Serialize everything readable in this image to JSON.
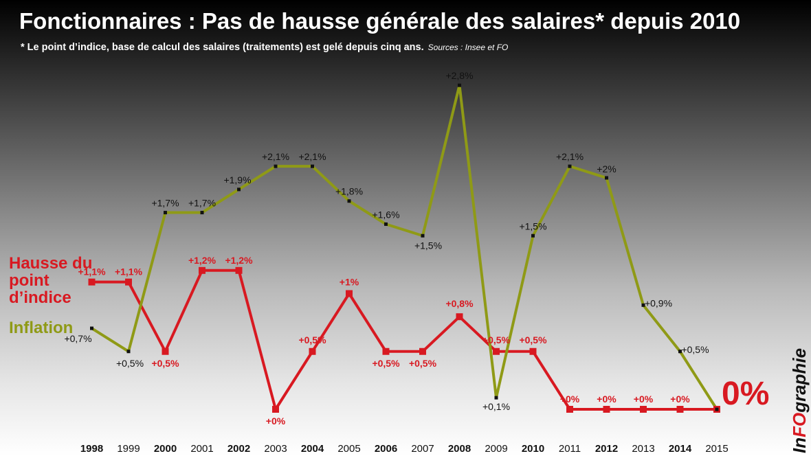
{
  "header": {
    "title": "Fonctionnaires : Pas de hausse générale des salaires* depuis 2010",
    "subtitle": "* Le point d’indice, base de calcul des salaires (traitements) est gelé depuis cinq ans.",
    "sources": "Sources : Insee et FO"
  },
  "legend": {
    "hausse": "Hausse du point d’indice",
    "inflation": "Inflation"
  },
  "highlight": "0%",
  "brand": {
    "part1": "In",
    "part2": "FO",
    "part3": "graphie"
  },
  "colors": {
    "hausse": "#d81921",
    "inflation": "#8f9a16",
    "background_top": "#000000",
    "background_bottom": "#ffffff"
  },
  "chart_data": {
    "type": "line",
    "title": "Fonctionnaires : Pas de hausse générale des salaires* depuis 2010",
    "x": [
      "1998",
      "1999",
      "2000",
      "2001",
      "2002",
      "2003",
      "2004",
      "2005",
      "2006",
      "2007",
      "2008",
      "2009",
      "2010",
      "2011",
      "2012",
      "2013",
      "2014",
      "2015"
    ],
    "bold_years": [
      "1998",
      "2000",
      "2002",
      "2004",
      "2006",
      "2008",
      "2010",
      "2012",
      "2014"
    ],
    "ylim": [
      0,
      2.8
    ],
    "grid": false,
    "legend_placement": "left",
    "series": [
      {
        "name": "Hausse du point d’indice",
        "values": [
          1.1,
          1.1,
          0.5,
          1.2,
          1.2,
          0,
          0.5,
          1.0,
          0.5,
          0.5,
          0.8,
          0.5,
          0.5,
          0,
          0,
          0,
          0,
          0
        ],
        "labels": [
          "+1,1%",
          "+1,1%",
          "+0,5%",
          "+1,2%",
          "+1,2%",
          "+0%",
          "+0,5%",
          "+1%",
          "+0,5%",
          "+0,5%",
          "+0,8%",
          "+0,5%",
          "+0,5%",
          "+0%",
          "+0%",
          "+0%",
          "+0%",
          ""
        ]
      },
      {
        "name": "Inflation",
        "values": [
          0.7,
          0.5,
          1.7,
          1.7,
          1.9,
          2.1,
          2.1,
          1.8,
          1.6,
          1.5,
          2.8,
          0.1,
          1.5,
          2.1,
          2.0,
          0.9,
          0.5,
          0
        ],
        "labels": [
          "+0,7%",
          "+0,5%",
          "+1,7%",
          "+1,7%",
          "+1,9%",
          "+2,1%",
          "+2,1%",
          "+1,8%",
          "+1,6%",
          "+1,5%",
          "+2,8%",
          "+0,1%",
          "+1,5%",
          "+2,1%",
          "+2%",
          "+0,9%",
          "+0,5%",
          ""
        ]
      }
    ]
  }
}
